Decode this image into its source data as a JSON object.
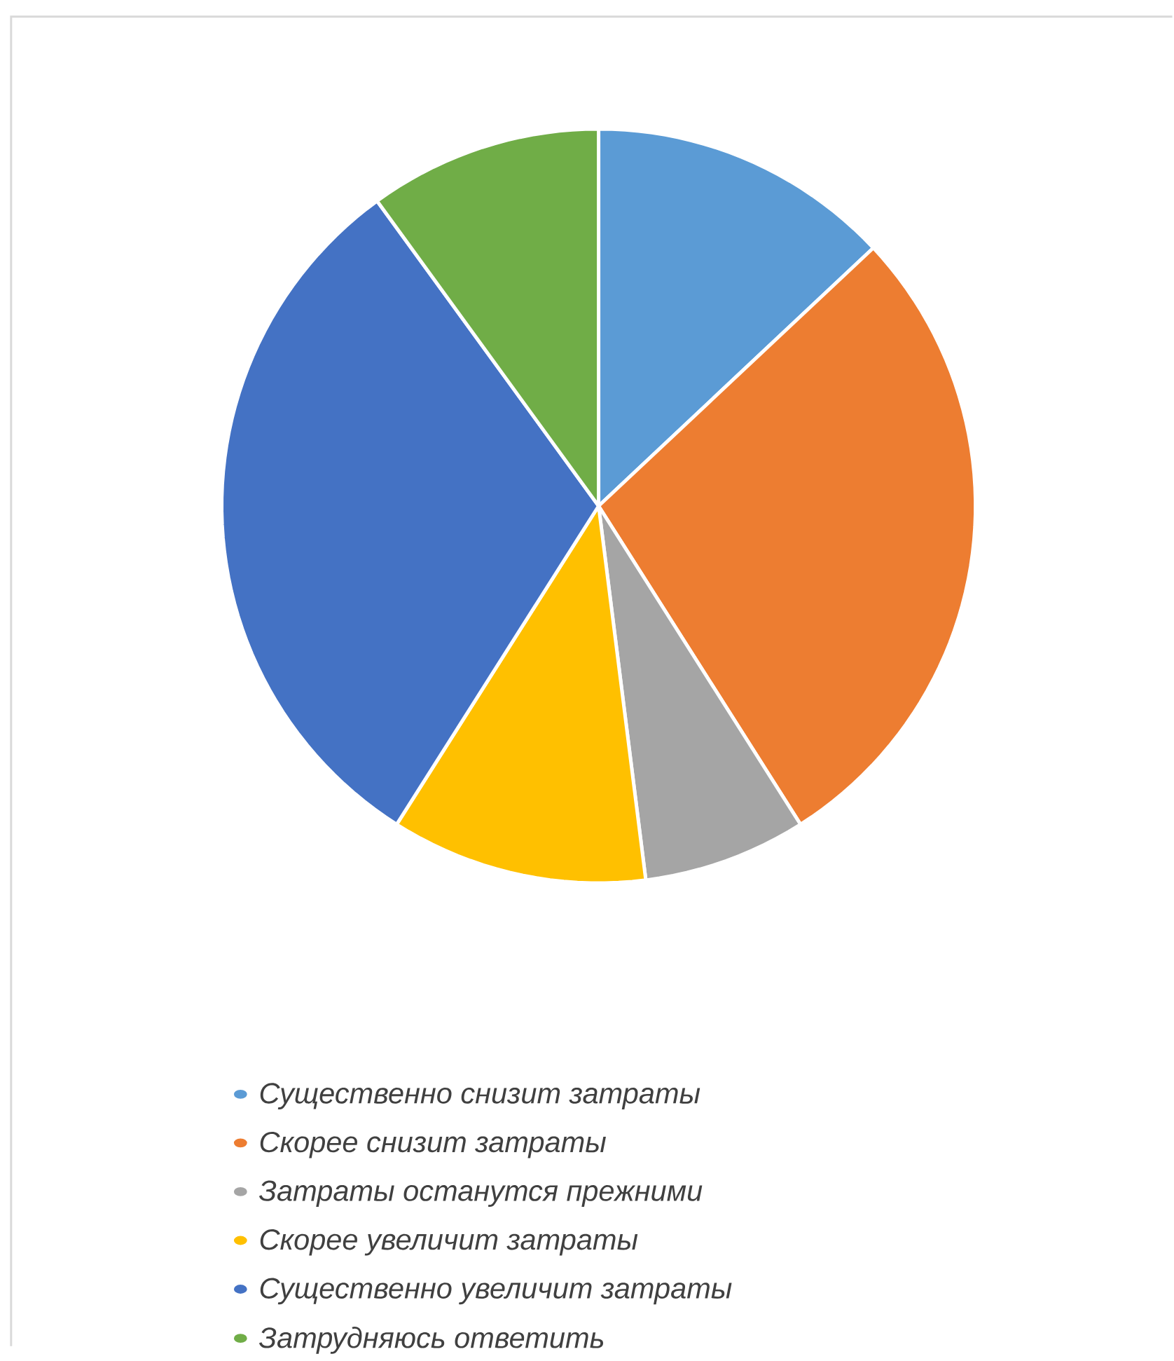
{
  "chart_data": {
    "type": "pie",
    "categories": [
      "Существенно снизит затраты",
      "Скорее снизит затраты",
      "Затраты останутся прежними",
      "Скорее увеличит затраты",
      "Существенно увеличит затраты",
      "Затрудняюсь ответить"
    ],
    "values": [
      13,
      28,
      7,
      11,
      31,
      10
    ],
    "colors": [
      "#5b9bd5",
      "#ed7d31",
      "#a5a5a5",
      "#ffc000",
      "#4472c4",
      "#70ad47"
    ],
    "legend": "bottom"
  }
}
